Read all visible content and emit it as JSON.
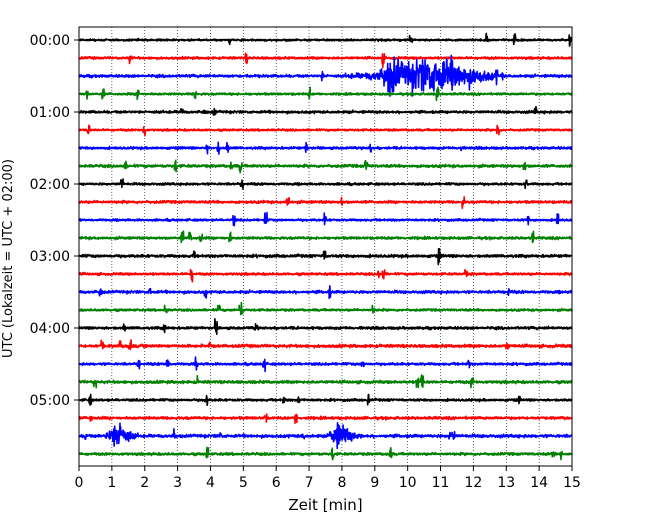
{
  "chart_data": {
    "type": "line",
    "title": "",
    "xlabel": "Zeit  [min]",
    "ylabel": "UTC (Lokalzeit = UTC + 02:00)",
    "xlim": [
      0,
      15
    ],
    "x_ticks": [
      "0",
      "1",
      "2",
      "3",
      "4",
      "5",
      "6",
      "7",
      "8",
      "9",
      "10",
      "11",
      "12",
      "13",
      "14",
      "15"
    ],
    "y_tick_labels": [
      "00:00",
      "01:00",
      "02:00",
      "03:00",
      "04:00",
      "05:00"
    ],
    "y_tick_rows": [
      0,
      4,
      8,
      12,
      16,
      20
    ],
    "row_interval_minutes": 15,
    "row_count": 24,
    "row_colors": [
      "#000000",
      "#ff0000",
      "#0000ff",
      "#008000"
    ],
    "grid": "vertical dotted at each minute",
    "events": [
      {
        "row": 2,
        "start_min": 8.1,
        "end_min": 12.7,
        "peak_min": 10.8,
        "note": "largest-amplitude burst"
      },
      {
        "row": 2,
        "start_min": 9.2,
        "end_min": 9.9,
        "peak_min": 9.5
      },
      {
        "row": 22,
        "start_min": 0.8,
        "end_min": 1.8,
        "peak_min": 1.2
      },
      {
        "row": 22,
        "start_min": 7.6,
        "end_min": 8.6,
        "peak_min": 7.9
      }
    ]
  }
}
